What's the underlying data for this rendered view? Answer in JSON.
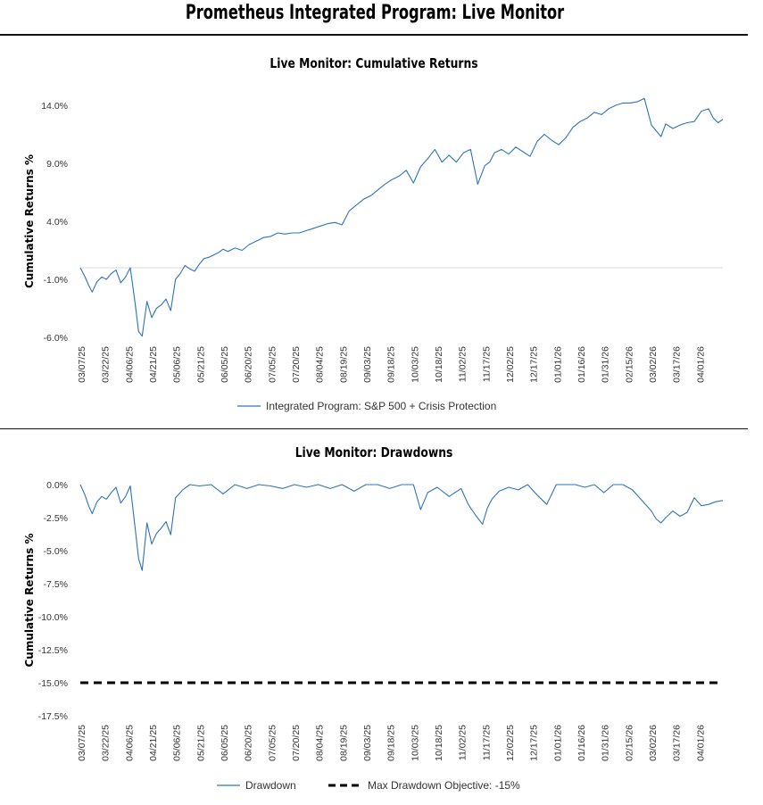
{
  "page_title": "Prometheus Integrated Program: Live Monitor",
  "colors": {
    "title": "#1f6fbf",
    "series": "#2e73b8",
    "objective": "#000000"
  },
  "chart_data": [
    {
      "type": "line",
      "title": "Live Monitor: Cumulative Returns",
      "ylabel": "Cumulative Returns %",
      "xlabel": "",
      "ylim": [
        -6.0,
        14.0
      ],
      "yticks": [
        14.0,
        9.0,
        4.0,
        -1.0,
        -6.0
      ],
      "ytick_labels": [
        "14.0%",
        "9.0%",
        "4.0%",
        "-1.0%",
        "-6.0%"
      ],
      "x_tick_labels": [
        "03/07/25",
        "03/22/25",
        "04/06/25",
        "04/21/25",
        "05/06/25",
        "05/21/25",
        "06/05/25",
        "06/20/25",
        "07/05/25",
        "07/20/25",
        "08/04/25",
        "08/19/25",
        "09/03/25",
        "09/18/25",
        "10/03/25",
        "10/18/25",
        "11/02/25",
        "11/17/25",
        "12/02/25",
        "12/17/25",
        "01/01/26",
        "01/16/26",
        "01/31/26",
        "02/15/26",
        "03/02/26",
        "03/17/26",
        "04/01/26"
      ],
      "x_range": [
        0,
        27
      ],
      "baseline": 0,
      "legend": "bottom-center",
      "series": [
        {
          "name": "Integrated Program: S&P 500 + Crisis Protection",
          "x": [
            0,
            0.2,
            0.35,
            0.5,
            0.7,
            0.9,
            1.1,
            1.3,
            1.5,
            1.7,
            1.9,
            2.1,
            2.3,
            2.45,
            2.6,
            2.8,
            3.0,
            3.2,
            3.4,
            3.6,
            3.8,
            4.0,
            4.2,
            4.4,
            4.6,
            4.8,
            5.0,
            5.2,
            5.4,
            5.6,
            5.8,
            6.0,
            6.2,
            6.5,
            6.8,
            7.1,
            7.4,
            7.7,
            8.0,
            8.3,
            8.6,
            8.9,
            9.2,
            9.5,
            9.8,
            10.1,
            10.4,
            10.7,
            11.0,
            11.3,
            11.6,
            11.9,
            12.2,
            12.5,
            12.8,
            13.1,
            13.4,
            13.7,
            14.0,
            14.3,
            14.6,
            14.9,
            15.2,
            15.5,
            15.8,
            16.1,
            16.4,
            16.7,
            17.0,
            17.2,
            17.4,
            17.7,
            18.0,
            18.3,
            18.6,
            18.9,
            19.2,
            19.5,
            19.8,
            20.1,
            20.4,
            20.7,
            21.0,
            21.3,
            21.6,
            21.9,
            22.2,
            22.5,
            22.8,
            23.1,
            23.4,
            23.7,
            24.0,
            24.2,
            24.4,
            24.6,
            24.9,
            25.2,
            25.5,
            25.8,
            26.1,
            26.4,
            26.6,
            26.8,
            27.0
          ],
          "values": [
            0,
            -0.8,
            -1.5,
            -2.1,
            -1.2,
            -0.8,
            -1.0,
            -0.5,
            -0.2,
            -1.3,
            -0.8,
            0,
            -3.0,
            -5.5,
            -5.9,
            -2.9,
            -4.3,
            -3.5,
            -3.2,
            -2.7,
            -3.7,
            -1.0,
            -0.5,
            0.2,
            -0.1,
            -0.3,
            0.3,
            0.8,
            0.9,
            1.1,
            1.3,
            1.6,
            1.4,
            1.7,
            1.5,
            2.0,
            2.3,
            2.6,
            2.7,
            3.0,
            2.9,
            3.0,
            3.0,
            3.2,
            3.4,
            3.6,
            3.8,
            3.9,
            3.7,
            4.9,
            5.4,
            5.9,
            6.2,
            6.7,
            7.2,
            7.6,
            7.9,
            8.4,
            7.3,
            8.7,
            9.4,
            10.2,
            9.1,
            9.7,
            9.1,
            9.9,
            10.2,
            7.2,
            8.8,
            9.1,
            9.9,
            10.2,
            9.8,
            10.4,
            10.0,
            9.6,
            10.9,
            11.5,
            11.0,
            10.6,
            11.2,
            12.1,
            12.6,
            12.9,
            13.4,
            13.2,
            13.7,
            14.0,
            14.2,
            14.2,
            14.3,
            14.6,
            12.3,
            11.8,
            11.3,
            12.4,
            12.0,
            12.3,
            12.5,
            12.6,
            13.5,
            13.7,
            12.9,
            12.5,
            12.8
          ]
        }
      ]
    },
    {
      "type": "line",
      "title": "Live Monitor: Drawdowns",
      "ylabel": "Cumulative Returns %",
      "xlabel": "",
      "ylim": [
        -17.5,
        0.0
      ],
      "yticks": [
        0.0,
        -2.5,
        -5.0,
        -7.5,
        -10.0,
        -12.5,
        -15.0,
        -17.5
      ],
      "ytick_labels": [
        "0.0%",
        "-2.5%",
        "-5.0%",
        "-7.5%",
        "-10.0%",
        "-12.5%",
        "-15.0%",
        "-17.5%"
      ],
      "x_tick_labels": [
        "03/07/25",
        "03/22/25",
        "04/06/25",
        "04/21/25",
        "05/06/25",
        "05/21/25",
        "06/05/25",
        "06/20/25",
        "07/05/25",
        "07/20/25",
        "08/04/25",
        "08/19/25",
        "09/03/25",
        "09/18/25",
        "10/03/25",
        "10/18/25",
        "11/02/25",
        "11/17/25",
        "12/02/25",
        "12/17/25",
        "01/01/26",
        "01/16/26",
        "01/31/26",
        "02/15/26",
        "03/02/26",
        "03/17/26",
        "04/01/26"
      ],
      "x_range": [
        0,
        27
      ],
      "legend": "bottom-center",
      "series": [
        {
          "name": "Drawdown",
          "x": [
            0,
            0.2,
            0.35,
            0.5,
            0.7,
            0.9,
            1.1,
            1.3,
            1.5,
            1.7,
            1.9,
            2.1,
            2.3,
            2.45,
            2.6,
            2.8,
            3.0,
            3.2,
            3.4,
            3.6,
            3.8,
            4.0,
            4.3,
            4.6,
            5.0,
            5.5,
            6.0,
            6.5,
            7.0,
            7.5,
            8.0,
            8.5,
            9.0,
            9.5,
            10.0,
            10.5,
            11.0,
            11.5,
            12.0,
            12.5,
            13.0,
            13.5,
            14.0,
            14.3,
            14.6,
            15.0,
            15.5,
            16.0,
            16.3,
            16.6,
            16.9,
            17.1,
            17.3,
            17.6,
            18.0,
            18.4,
            18.8,
            19.2,
            19.6,
            20.0,
            20.4,
            20.8,
            21.2,
            21.6,
            22.0,
            22.4,
            22.8,
            23.2,
            23.6,
            24.0,
            24.2,
            24.4,
            24.6,
            24.9,
            25.2,
            25.5,
            25.8,
            26.1,
            26.4,
            26.7,
            27.0
          ],
          "values": [
            0,
            -0.8,
            -1.6,
            -2.2,
            -1.3,
            -0.9,
            -1.1,
            -0.6,
            -0.2,
            -1.4,
            -0.9,
            -0.1,
            -3.2,
            -5.6,
            -6.5,
            -2.9,
            -4.5,
            -3.7,
            -3.3,
            -2.8,
            -3.8,
            -1.0,
            -0.4,
            0,
            -0.1,
            0,
            -0.7,
            0,
            -0.3,
            0,
            -0.1,
            -0.3,
            0,
            -0.2,
            0,
            -0.3,
            0,
            -0.5,
            0,
            0,
            -0.3,
            0,
            0,
            -1.9,
            -0.6,
            -0.2,
            -0.9,
            -0.3,
            -1.5,
            -2.3,
            -3.0,
            -1.8,
            -1.1,
            -0.5,
            -0.2,
            -0.4,
            0,
            -0.8,
            -1.5,
            0,
            0,
            0,
            -0.2,
            0,
            -0.6,
            0,
            0,
            -0.4,
            -1.2,
            -2.0,
            -2.6,
            -2.9,
            -2.5,
            -2.0,
            -2.4,
            -2.1,
            -1.0,
            -1.6,
            -1.5,
            -1.3,
            -1.2
          ]
        },
        {
          "name": "Max Drawdown Objective: -15%",
          "constant": -15.0
        }
      ]
    }
  ]
}
